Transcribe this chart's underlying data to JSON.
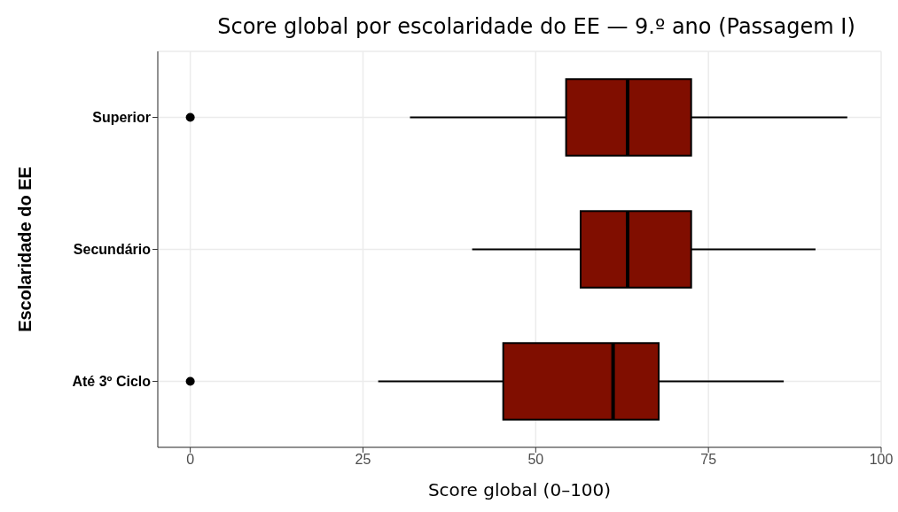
{
  "chart_data": {
    "type": "box",
    "title": "Score global por escolaridade do EE — 9.º ano (Passagem I)",
    "xlabel": "Score global (0–100)",
    "ylabel": "Escolaridade do EE",
    "orientation": "horizontal",
    "categories": [
      "Superior",
      "Secundário",
      "Até 3º Ciclo"
    ],
    "color": "#800e00",
    "xlim": [
      -4.7,
      100
    ],
    "xticks": [
      0,
      25,
      50,
      75,
      100
    ],
    "grid": true,
    "boxes": [
      {
        "low": 31.8,
        "q1": 54.4,
        "median": 63.3,
        "q3": 72.5,
        "high": 95.1,
        "outliers": [
          0
        ]
      },
      {
        "low": 40.8,
        "q1": 56.5,
        "median": 63.3,
        "q3": 72.5,
        "high": 90.5
      },
      {
        "low": 27.2,
        "q1": 45.3,
        "median": 61.2,
        "q3": 67.8,
        "high": 85.9,
        "outliers": [
          0
        ]
      }
    ]
  }
}
